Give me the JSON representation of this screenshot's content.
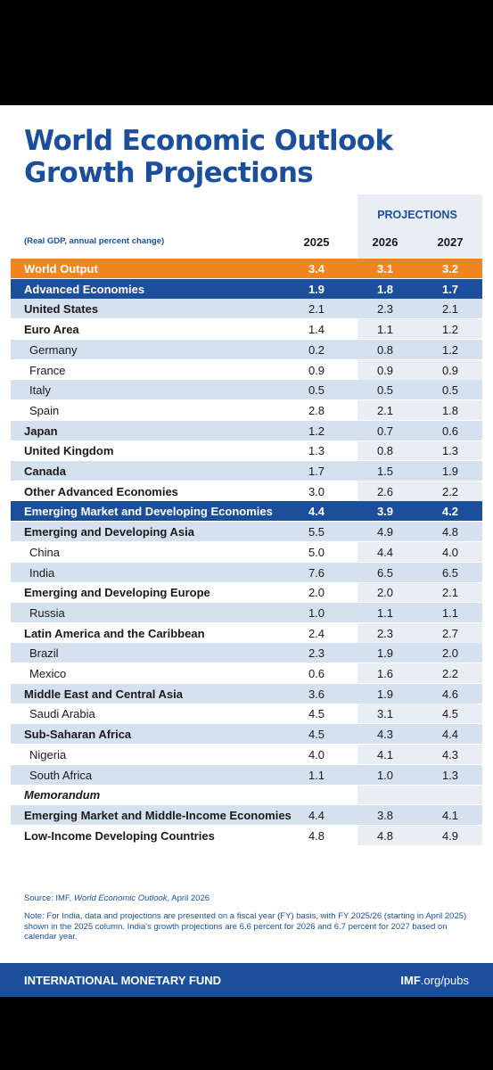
{
  "header": {
    "title_lines": [
      "World Economic Outlook",
      "Growth Projections"
    ],
    "projections_label": "PROJECTIONS",
    "units": "(Real GDP, annual percent change)",
    "columns": [
      "2025",
      "2026",
      "2027"
    ]
  },
  "table": {
    "rows": [
      {
        "label": "World Output",
        "values": [
          "3.4",
          "3.1",
          "3.2"
        ]
      },
      {
        "label": "Advanced Economies",
        "values": [
          "1.9",
          "1.8",
          "1.7"
        ]
      },
      {
        "label": "United States",
        "values": [
          "2.1",
          "2.3",
          "2.1"
        ]
      },
      {
        "label": "Euro Area",
        "values": [
          "1.4",
          "1.1",
          "1.2"
        ]
      },
      {
        "label": "Germany",
        "values": [
          "0.2",
          "0.8",
          "1.2"
        ]
      },
      {
        "label": "France",
        "values": [
          "0.9",
          "0.9",
          "0.9"
        ]
      },
      {
        "label": "Italy",
        "values": [
          "0.5",
          "0.5",
          "0.5"
        ]
      },
      {
        "label": "Spain",
        "values": [
          "2.8",
          "2.1",
          "1.8"
        ]
      },
      {
        "label": "Japan",
        "values": [
          "1.2",
          "0.7",
          "0.6"
        ]
      },
      {
        "label": "United Kingdom",
        "values": [
          "1.3",
          "0.8",
          "1.3"
        ]
      },
      {
        "label": "Canada",
        "values": [
          "1.7",
          "1.5",
          "1.9"
        ]
      },
      {
        "label": "Other Advanced Economies",
        "values": [
          "3.0",
          "2.6",
          "2.2"
        ]
      },
      {
        "label": "Emerging Market and Developing Economies",
        "values": [
          "4.4",
          "3.9",
          "4.2"
        ]
      },
      {
        "label": "Emerging and Developing Asia",
        "values": [
          "5.5",
          "4.9",
          "4.8"
        ]
      },
      {
        "label": "China",
        "values": [
          "5.0",
          "4.4",
          "4.0"
        ]
      },
      {
        "label": "India",
        "values": [
          "7.6",
          "6.5",
          "6.5"
        ]
      },
      {
        "label": "Emerging and Developing Europe",
        "values": [
          "2.0",
          "2.0",
          "2.1"
        ]
      },
      {
        "label": "Russia",
        "values": [
          "1.0",
          "1.1",
          "1.1"
        ]
      },
      {
        "label": "Latin America and the Caribbean",
        "values": [
          "2.4",
          "2.3",
          "2.7"
        ]
      },
      {
        "label": "Brazil",
        "values": [
          "2.3",
          "1.9",
          "2.0"
        ]
      },
      {
        "label": "Mexico",
        "values": [
          "0.6",
          "1.6",
          "2.2"
        ]
      },
      {
        "label": "Middle East and Central Asia",
        "values": [
          "3.6",
          "1.9",
          "4.6"
        ]
      },
      {
        "label": "Saudi Arabia",
        "values": [
          "4.5",
          "3.1",
          "4.5"
        ]
      },
      {
        "label": "Sub-Saharan Africa",
        "values": [
          "4.5",
          "4.3",
          "4.4"
        ]
      },
      {
        "label": "Nigeria",
        "values": [
          "4.0",
          "4.1",
          "4.3"
        ]
      },
      {
        "label": "South Africa",
        "values": [
          "1.1",
          "1.0",
          "1.3"
        ]
      },
      {
        "label": "Memorandum",
        "values": []
      },
      {
        "label": "Emerging Market and Middle-Income Economies",
        "values": [
          "4.4",
          "3.8",
          "4.1"
        ]
      },
      {
        "label": "Low-Income Developing Countries",
        "values": [
          "4.8",
          "4.8",
          "4.9"
        ]
      }
    ]
  },
  "source": {
    "prefix": "Source: IMF,",
    "publication": "World Economic Outlook",
    "suffix": ", April 2026"
  },
  "note": "Note: For India, data and projections are presented on a fiscal year (FY) basis, with FY 2025/26 (starting in April 2025) shown in the 2025 column. India's growth projections are 6.6 percent for 2026 and 6.7 percent for 2027 based on calendar year.",
  "footer": {
    "organization": "INTERNATIONAL MONETARY FUND",
    "link_bold": "IMF",
    "link_rest": ".org/pubs"
  }
}
